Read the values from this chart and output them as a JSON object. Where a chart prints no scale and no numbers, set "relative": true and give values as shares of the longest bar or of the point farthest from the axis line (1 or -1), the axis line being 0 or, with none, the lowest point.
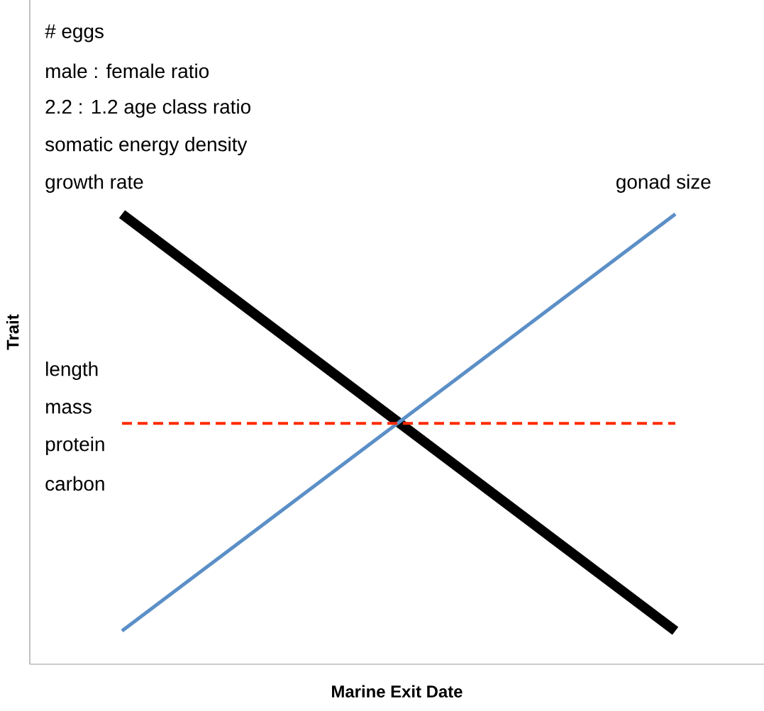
{
  "chart_data": {
    "type": "line",
    "relative": true,
    "xlabel": "Marine Exit Date",
    "ylabel": "Trait",
    "categories": [
      null,
      null
    ],
    "series": [
      {
        "color": "#000000",
        "values": [
          1,
          0.074
        ],
        "line_style": "solid"
      },
      {
        "color": "#5b8fc7",
        "values": [
          0.074,
          1
        ],
        "line_style": "solid"
      },
      {
        "color": "#ff2a00",
        "values": [
          0.535,
          0.535
        ],
        "line_style": "dashed"
      }
    ],
    "annotations": [
      "# eggs",
      "male : female ratio",
      "2.2 : 1.2 age class ratio",
      "somatic energy density",
      "growth rate",
      "gonad size",
      "length",
      "mass",
      "protein",
      "carbon"
    ],
    "marker": "none"
  }
}
